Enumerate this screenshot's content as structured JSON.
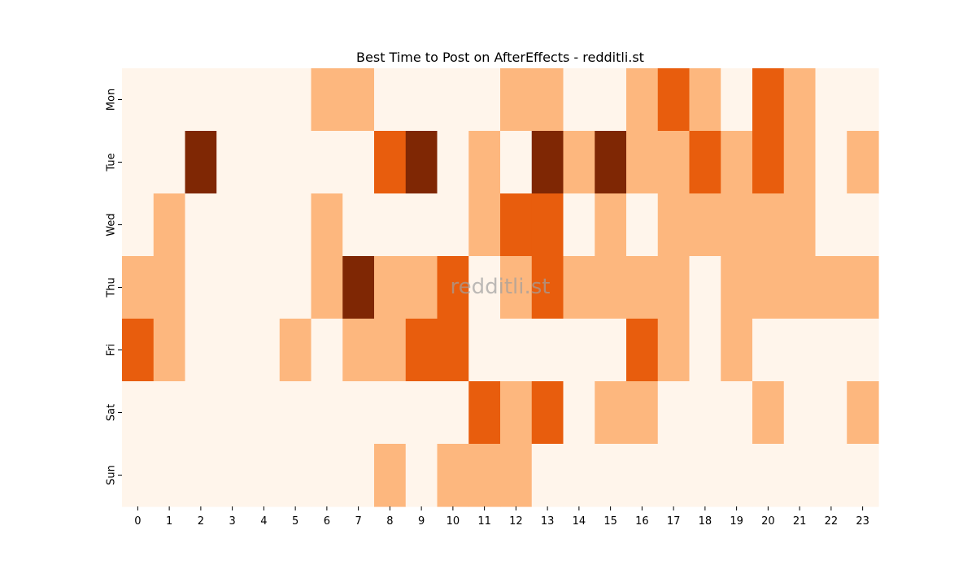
{
  "chart_data": {
    "type": "heatmap",
    "title": "Best Time to Post on AfterEffects - redditli.st",
    "watermark": "redditli.st",
    "x": [
      "0",
      "1",
      "2",
      "3",
      "4",
      "5",
      "6",
      "7",
      "8",
      "9",
      "10",
      "11",
      "12",
      "13",
      "14",
      "15",
      "16",
      "17",
      "18",
      "19",
      "20",
      "21",
      "22",
      "23"
    ],
    "y": [
      "Mon",
      "Tue",
      "Wed",
      "Thu",
      "Fri",
      "Sat",
      "Sun"
    ],
    "xlabel": "",
    "ylabel": "",
    "colorscale": "Oranges",
    "colors": [
      "#fff5eb",
      "#fdb77e",
      "#e85d0d",
      "#7f2704"
    ],
    "values": [
      [
        0,
        0,
        0,
        0,
        0,
        0,
        1,
        1,
        0,
        0,
        0,
        0,
        1,
        1,
        0,
        0,
        1,
        2,
        1,
        0,
        2,
        1,
        0,
        0
      ],
      [
        0,
        0,
        3,
        0,
        0,
        0,
        0,
        0,
        2,
        3,
        0,
        1,
        0,
        3,
        1,
        3,
        1,
        1,
        2,
        1,
        2,
        1,
        0,
        1
      ],
      [
        0,
        1,
        0,
        0,
        0,
        0,
        1,
        0,
        0,
        0,
        0,
        1,
        2,
        2,
        0,
        1,
        0,
        1,
        1,
        1,
        1,
        1,
        0,
        0
      ],
      [
        1,
        1,
        0,
        0,
        0,
        0,
        1,
        3,
        1,
        1,
        2,
        0,
        1,
        2,
        1,
        1,
        1,
        1,
        0,
        1,
        1,
        1,
        1,
        1
      ],
      [
        2,
        1,
        0,
        0,
        0,
        1,
        0,
        1,
        1,
        2,
        2,
        0,
        0,
        0,
        0,
        0,
        2,
        1,
        0,
        1,
        0,
        0,
        0,
        0
      ],
      [
        0,
        0,
        0,
        0,
        0,
        0,
        0,
        0,
        0,
        0,
        0,
        2,
        1,
        2,
        0,
        1,
        1,
        0,
        0,
        0,
        1,
        0,
        0,
        1
      ],
      [
        0,
        0,
        0,
        0,
        0,
        0,
        0,
        0,
        1,
        0,
        1,
        1,
        1,
        0,
        0,
        0,
        0,
        0,
        0,
        0,
        0,
        0,
        0,
        0
      ]
    ],
    "legend": "none",
    "grid": false
  }
}
